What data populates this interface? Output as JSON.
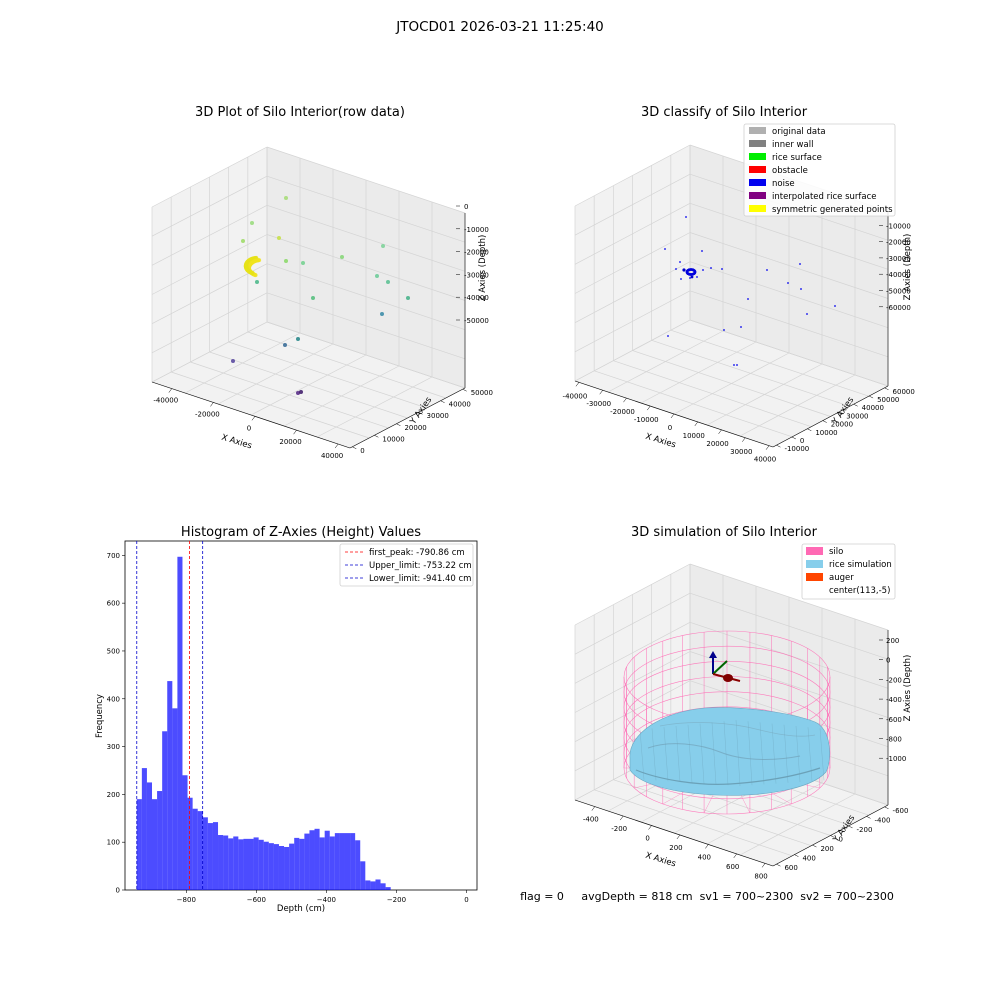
{
  "suptitle": "JTOCD01 2026-03-21 11:25:40",
  "status_line": "flag = 0     avgDepth = 818 cm  sv1 = 700~2300  sv2 = 700~2300",
  "chart_data": [
    {
      "type": "scatter",
      "title": "3D Plot of Silo Interior(row data)",
      "xlabel": "X Axies",
      "ylabel": "Y Axies",
      "zlabel": "Z Axies (Depth)",
      "x_ticks": [
        "-40000",
        "-20000",
        "0",
        "20000",
        "40000"
      ],
      "y_ticks": [
        "0",
        "10000",
        "20000",
        "30000",
        "40000",
        "50000"
      ],
      "z_ticks": [
        "0",
        "-10000",
        "-20000",
        "-30000",
        "-40000",
        "-50000"
      ],
      "colormap": "viridis",
      "grid": true
    },
    {
      "type": "scatter",
      "title": "3D classify of Silo Interior",
      "xlabel": "X Axies",
      "ylabel": "Y Axies",
      "zlabel": "Z Axies (Depth)",
      "x_ticks": [
        "-40000",
        "-30000",
        "-20000",
        "-10000",
        "0",
        "10000",
        "20000",
        "30000",
        "40000"
      ],
      "y_ticks": [
        "-10000",
        "0",
        "10000",
        "20000",
        "30000",
        "40000",
        "50000",
        "60000"
      ],
      "z_ticks": [
        "0",
        "-10000",
        "-20000",
        "-30000",
        "-40000",
        "-50000",
        "-60000"
      ],
      "legend": [
        {
          "label": "original data",
          "color": "#b0b0b0"
        },
        {
          "label": "inner wall",
          "color": "#808080"
        },
        {
          "label": "rice surface",
          "color": "#00ee00"
        },
        {
          "label": "obstacle",
          "color": "#ff0000"
        },
        {
          "label": "noise",
          "color": "#0000ee"
        },
        {
          "label": "interpolated rice surface",
          "color": "#800080"
        },
        {
          "label": "symmetric generated points",
          "color": "#ffff00"
        }
      ],
      "legend_position": "top-right",
      "grid": true
    },
    {
      "type": "bar",
      "title": "Histogram of Z-Axies (Height) Values",
      "xlabel": "Depth (cm)",
      "ylabel": "Frequency",
      "xlim": [
        -975,
        30
      ],
      "ylim": [
        0,
        730
      ],
      "x_ticks": [
        -800,
        -600,
        -400,
        -200,
        0
      ],
      "x_tick_labels": [
        "−800",
        "−600",
        "−400",
        "−200",
        "0"
      ],
      "y_ticks": [
        0,
        100,
        200,
        300,
        400,
        500,
        600,
        700
      ],
      "bin_start": -941.4,
      "bin_width": 14.5,
      "values": [
        190,
        255,
        225,
        190,
        207,
        332,
        437,
        380,
        697,
        240,
        193,
        170,
        165,
        152,
        140,
        142,
        115,
        114,
        108,
        112,
        106,
        107,
        107,
        110,
        105,
        101,
        98,
        96,
        92,
        90,
        97,
        109,
        107,
        118,
        125,
        128,
        110,
        124,
        112,
        119,
        119,
        119,
        119,
        104,
        60,
        20,
        18,
        22,
        14,
        6
      ],
      "bar_color": "#0000ff",
      "vlines": [
        {
          "label": "first_peak: -790.86 cm",
          "x": -790.86,
          "color": "#ff0000"
        },
        {
          "label": "Upper_limit: -753.22 cm",
          "x": -753.22,
          "color": "#0000cc"
        },
        {
          "label": "Lower_limit: -941.40 cm",
          "x": -941.4,
          "color": "#0000cc"
        }
      ],
      "legend_position": "top-right"
    },
    {
      "type": "surface",
      "title": "3D simulation of Silo Interior",
      "xlabel": "X Axies",
      "ylabel": "Y Axies",
      "zlabel": "Z Axies (Depth)",
      "x_ticks": [
        "-400",
        "-200",
        "0",
        "200",
        "400",
        "600",
        "800"
      ],
      "y_ticks": [
        "-600",
        "-400",
        "-200",
        "0",
        "200",
        "400",
        "600"
      ],
      "z_ticks": [
        "200",
        "0",
        "-200",
        "-400",
        "-600",
        "-800",
        "-1000"
      ],
      "legend": [
        {
          "label": "silo",
          "color": "#ff69b4"
        },
        {
          "label": "rice simulation",
          "color": "#87ceeb"
        },
        {
          "label": "auger",
          "color": "#ff4500"
        },
        {
          "label": "center(113,-5)",
          "color": ""
        }
      ],
      "legend_position": "top-right"
    }
  ]
}
